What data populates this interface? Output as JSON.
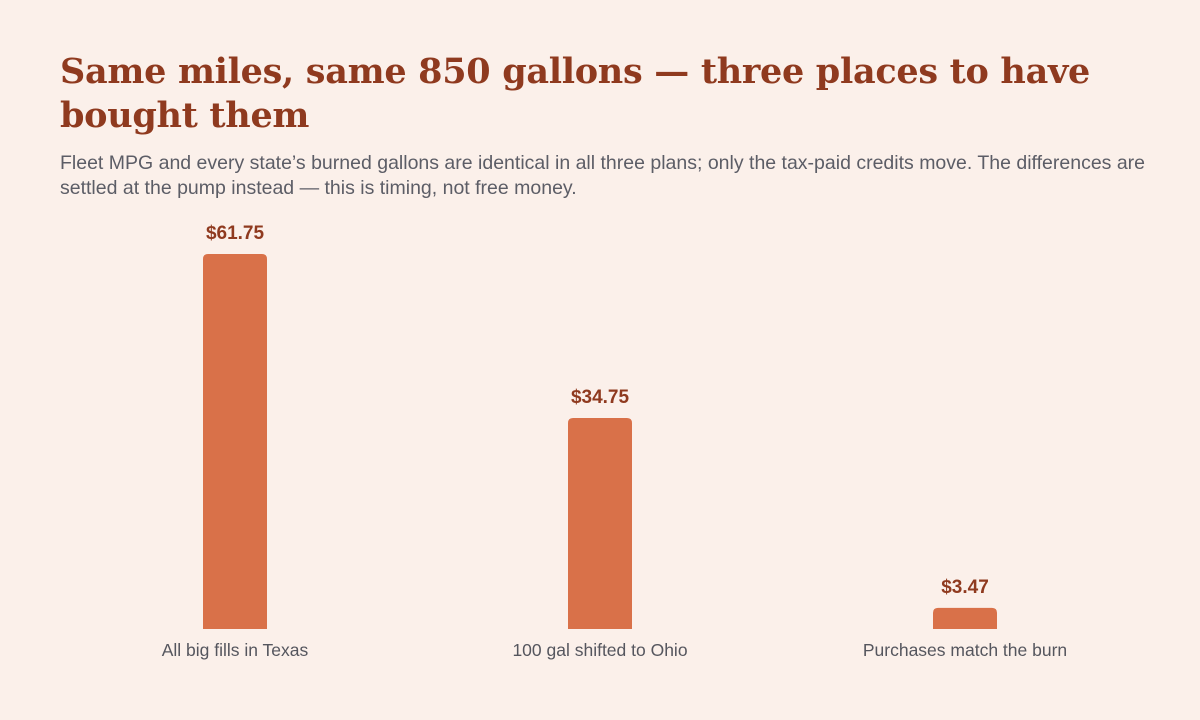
{
  "page": {
    "title": "Same miles, same 850 gallons — three places to have bought them",
    "subtitle": "Fleet MPG and every state’s burned gallons are identical in all three plans; only the tax-paid credits move. The differences are settled at the pump instead — this is timing, not free money."
  },
  "colors": {
    "background": "#fbf0ea",
    "bar": "#d97149",
    "title": "#8f3a1f",
    "value_label": "#8f3a1f",
    "text": "#5c5d66"
  },
  "chart_data": {
    "type": "bar",
    "title": "Same miles, same 850 gallons — three places to have bought them",
    "subtitle": "Fleet MPG and every state’s burned gallons are identical in all three plans; only the tax-paid credits move. The differences are settled at the pump instead — this is timing, not free money.",
    "categories": [
      "All big fills in Texas",
      "100 gal shifted to Ohio",
      "Purchases match the burn"
    ],
    "values": [
      61.75,
      34.75,
      3.47
    ],
    "value_labels": [
      "$61.75",
      "$34.75",
      "$3.47"
    ],
    "xlabel": "",
    "ylabel": "",
    "ylim": [
      0,
      61.75
    ],
    "grid": false,
    "legend": "none"
  }
}
